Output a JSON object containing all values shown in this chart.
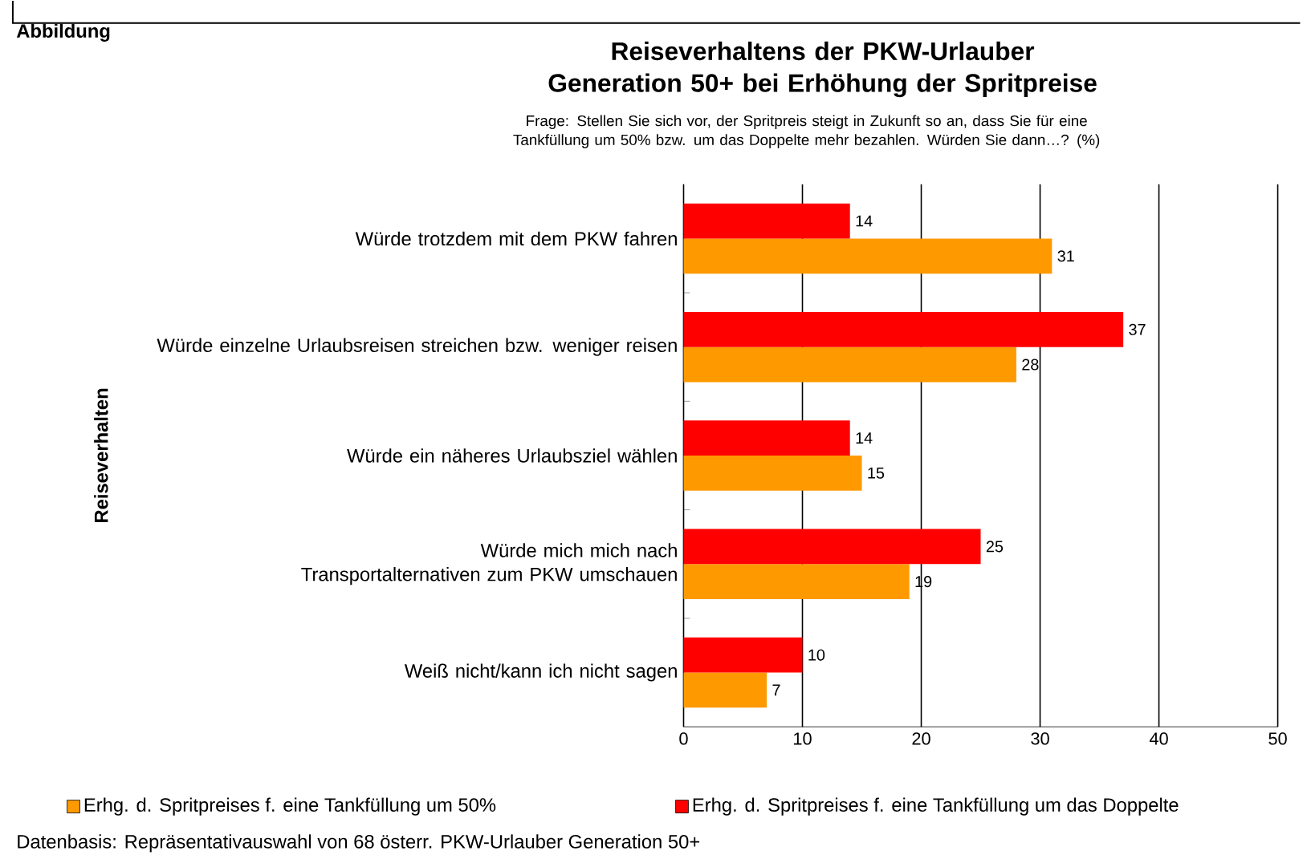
{
  "chart_data": {
    "type": "bar",
    "orientation": "horizontal",
    "title": "Reiseverhaltens der PKW-Urlauber Generation 50+ bei Erhöhung der Spritpreise",
    "subtitle": "Frage: Stellen Sie sich vor, der Spritpreis steigt in Zukunft so an, dass Sie für eine Tankfüllung um 50% bzw. um das Doppelte mehr bezahlen. Würden Sie dann…? (%)",
    "ylabel": "Reiseverhalten",
    "categories": [
      "Würde trotzdem mit dem PKW fahren",
      "Würde einzelne Urlaubsreisen streichen bzw. weniger reisen",
      "Würde ein näheres Urlaubsziel wählen",
      "Würde mich mich nach Transportalternativen zum PKW umschauen",
      "Weiß nicht/kann ich nicht sagen"
    ],
    "series": [
      {
        "name": "Erhg. d. Spritpreises f. eine Tankfüllung um 50%",
        "color": "#ff9900",
        "values": [
          31,
          28,
          15,
          19,
          7
        ]
      },
      {
        "name": "Erhg. d. Spritpreises f. eine Tankfüllung um das Doppelte",
        "color": "#ff0000",
        "values": [
          14,
          37,
          14,
          25,
          10
        ]
      }
    ],
    "xlim": [
      0,
      50
    ],
    "xticks": [
      0,
      10,
      20,
      30,
      40,
      50
    ],
    "grid": "x",
    "legend": "bottom",
    "data_labels": true,
    "annotations": [
      "Abbildung",
      "Datenbasis: Repräsentativauswahl von 68 österr. PKW-Urlauber Generation 50+"
    ]
  }
}
